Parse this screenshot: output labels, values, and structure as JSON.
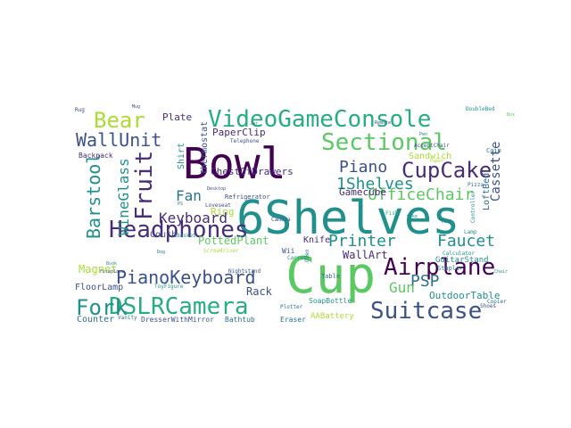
{
  "wordcloud": {
    "colors": {
      "dark_purple": "#440154",
      "indigo": "#472c7a",
      "slate_blue": "#3b518b",
      "teal_blue": "#2c718e",
      "teal": "#21908d",
      "green": "#27ad81",
      "light_green": "#5cc863",
      "lime": "#aadc32",
      "yellow": "#fde725"
    },
    "words": [
      {
        "text": "Bowl",
        "color": "dark_purple",
        "rotate": false
      },
      {
        "text": "6Shelves",
        "color": "teal",
        "rotate": false
      },
      {
        "text": "Cup",
        "color": "light_green",
        "rotate": false
      },
      {
        "text": "VideoGameConsole",
        "color": "green",
        "rotate": false
      },
      {
        "text": "Sectional",
        "color": "light_green",
        "rotate": false
      },
      {
        "text": "Headphones",
        "color": "indigo",
        "rotate": false
      },
      {
        "text": "DSLRCamera",
        "color": "green",
        "rotate": false
      },
      {
        "text": "Airplane",
        "color": "dark_purple",
        "rotate": false
      },
      {
        "text": "Suitcase",
        "color": "slate_blue",
        "rotate": false
      },
      {
        "text": "Fork",
        "color": "teal",
        "rotate": false
      },
      {
        "text": "CupCake",
        "color": "indigo",
        "rotate": false
      },
      {
        "text": "Bear",
        "color": "lime",
        "rotate": false
      },
      {
        "text": "WallUnit",
        "color": "slate_blue",
        "rotate": false
      },
      {
        "text": "Fruit",
        "color": "indigo",
        "rotate": true
      },
      {
        "text": "Barstool",
        "color": "teal",
        "rotate": true
      },
      {
        "text": "PianoKeyboard",
        "color": "slate_blue",
        "rotate": false
      },
      {
        "text": "Piano",
        "color": "slate_blue",
        "rotate": false
      },
      {
        "text": "1Shelves",
        "color": "teal",
        "rotate": false
      },
      {
        "text": "OfficeChair",
        "color": "light_green",
        "rotate": false
      },
      {
        "text": "Faucet",
        "color": "teal",
        "rotate": false
      },
      {
        "text": "Printer",
        "color": "teal",
        "rotate": false
      },
      {
        "text": "PSP",
        "color": "teal_blue",
        "rotate": false
      },
      {
        "text": "Gun",
        "color": "light_green",
        "rotate": false
      },
      {
        "text": "Keyboard",
        "color": "indigo",
        "rotate": false
      },
      {
        "text": "WineGlass",
        "color": "teal",
        "rotate": true
      },
      {
        "text": "Fan",
        "color": "teal_blue",
        "rotate": false
      },
      {
        "text": "Cassette",
        "color": "slate_blue",
        "rotate": true
      },
      {
        "text": "Magnet",
        "color": "lime",
        "rotate": false
      },
      {
        "text": "PottedPlant",
        "color": "light_green",
        "rotate": false
      },
      {
        "text": "Rack",
        "color": "slate_blue",
        "rotate": false
      },
      {
        "text": "WallArt",
        "color": "indigo",
        "rotate": false
      },
      {
        "text": "OutdoorTable",
        "color": "teal",
        "rotate": false
      },
      {
        "text": "Counter",
        "color": "teal_blue",
        "rotate": false
      },
      {
        "text": "ChestOfDrawers",
        "color": "indigo",
        "rotate": false
      },
      {
        "text": "PaperClip",
        "color": "indigo",
        "rotate": false
      },
      {
        "text": "Plate",
        "color": "indigo",
        "rotate": false
      },
      {
        "text": "Shirt",
        "color": "teal",
        "rotate": true
      },
      {
        "text": "Thermostat",
        "color": "slate_blue",
        "rotate": true
      },
      {
        "text": "Ring",
        "color": "lime",
        "rotate": false
      },
      {
        "text": "Couch",
        "color": "slate_blue",
        "rotate": false
      },
      {
        "text": "Knife",
        "color": "indigo",
        "rotate": false
      },
      {
        "text": "Gamecube",
        "color": "indigo",
        "rotate": false
      },
      {
        "text": "FloorLamp",
        "color": "slate_blue",
        "rotate": false
      },
      {
        "text": "Sandwich",
        "color": "lime",
        "rotate": false
      },
      {
        "text": "GuitarStand",
        "color": "teal",
        "rotate": false
      },
      {
        "text": "LoftBed",
        "color": "teal_blue",
        "rotate": true
      },
      {
        "text": "SoapBottle",
        "color": "teal",
        "rotate": false
      },
      {
        "text": "AABattery",
        "color": "lime",
        "rotate": false
      },
      {
        "text": "Bathtub",
        "color": "teal_blue",
        "rotate": false
      },
      {
        "text": "Eraser",
        "color": "teal_blue",
        "rotate": false
      },
      {
        "text": "DresserWithMirror",
        "color": "slate_blue",
        "rotate": false
      },
      {
        "text": "Backpack",
        "color": "indigo",
        "rotate": false
      },
      {
        "text": "Wii",
        "color": "slate_blue",
        "rotate": false
      },
      {
        "text": "Refrigerator",
        "color": "slate_blue",
        "rotate": false
      },
      {
        "text": "Telephone",
        "color": "slate_blue",
        "rotate": false
      },
      {
        "text": "Vanity",
        "color": "teal_blue",
        "rotate": false
      },
      {
        "text": "Table",
        "color": "teal_blue",
        "rotate": false
      },
      {
        "text": "Stapler",
        "color": "teal_blue",
        "rotate": false
      },
      {
        "text": "Calculator",
        "color": "teal",
        "rotate": false
      },
      {
        "text": "Nightstand",
        "color": "slate_blue",
        "rotate": false
      },
      {
        "text": "Basket",
        "color": "teal",
        "rotate": false
      },
      {
        "text": "Loveseat",
        "color": "slate_blue",
        "rotate": false
      },
      {
        "text": "Lamp",
        "color": "teal",
        "rotate": false
      },
      {
        "text": "Pizza",
        "color": "teal_blue",
        "rotate": false
      },
      {
        "text": "Coin",
        "color": "teal_blue",
        "rotate": false
      },
      {
        "text": "Copier",
        "color": "teal_blue",
        "rotate": false
      },
      {
        "text": "Shoes",
        "color": "slate_blue",
        "rotate": false
      },
      {
        "text": "Rug",
        "color": "slate_blue",
        "rotate": false
      },
      {
        "text": "Controller",
        "color": "teal",
        "rotate": true
      },
      {
        "text": "Camera",
        "color": "slate_blue",
        "rotate": false
      },
      {
        "text": "Carrot",
        "color": "teal",
        "rotate": false
      },
      {
        "text": "Oven",
        "color": "teal_blue",
        "rotate": true
      },
      {
        "text": "Fish",
        "color": "green",
        "rotate": false
      },
      {
        "text": "DoubleBed",
        "color": "teal",
        "rotate": false
      },
      {
        "text": "AccentChair",
        "color": "slate_blue",
        "rotate": false
      },
      {
        "text": "ToyFigure",
        "color": "teal",
        "rotate": false
      },
      {
        "text": "Plotter",
        "color": "teal_blue",
        "rotate": false
      },
      {
        "text": "Desktop",
        "color": "slate_blue",
        "rotate": false
      },
      {
        "text": "Book",
        "color": "teal",
        "rotate": false
      },
      {
        "text": "Fireplace",
        "color": "slate_blue",
        "rotate": false
      },
      {
        "text": "Cake",
        "color": "teal",
        "rotate": false
      },
      {
        "text": "Paper",
        "color": "lime",
        "rotate": false
      },
      {
        "text": "Tent",
        "color": "teal_blue",
        "rotate": false
      },
      {
        "text": "Dog",
        "color": "teal_blue",
        "rotate": false
      },
      {
        "text": "Screwdriver",
        "color": "lime",
        "rotate": false
      },
      {
        "text": "PS",
        "color": "teal_blue",
        "rotate": false
      },
      {
        "text": "Remote",
        "color": "slate_blue",
        "rotate": false
      },
      {
        "text": "Mug",
        "color": "slate_blue",
        "rotate": false
      },
      {
        "text": "Pen",
        "color": "teal_blue",
        "rotate": false
      },
      {
        "text": "Box",
        "color": "light_green",
        "rotate": false
      },
      {
        "text": "Chair",
        "color": "teal",
        "rotate": false
      },
      {
        "text": "Jar",
        "color": "teal_blue",
        "rotate": false
      }
    ]
  }
}
